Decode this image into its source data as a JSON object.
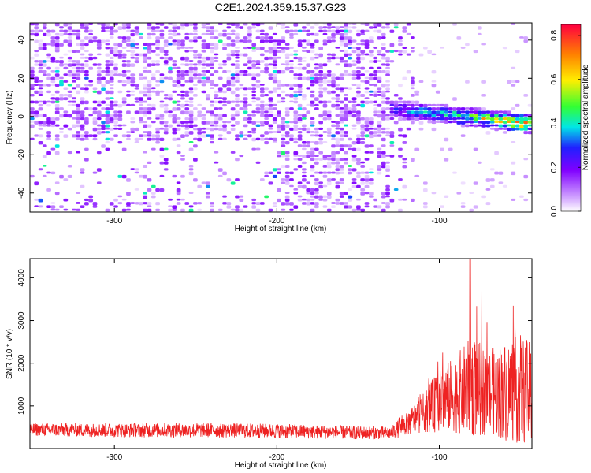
{
  "title": "C2E1.2024.359.15.37.G23",
  "chart_data": [
    {
      "type": "heatmap",
      "name": "spectrogram",
      "xlabel": "Height of straight line (km)",
      "ylabel": "Frequency (Hz)",
      "xlim": [
        -352,
        -43
      ],
      "ylim": [
        -50,
        49
      ],
      "xticks": [
        -300,
        -200,
        -100
      ],
      "yticks": [
        -40,
        -20,
        0,
        20,
        40
      ],
      "colorbar": {
        "label": "Normalized spectral amplitude",
        "range": [
          0,
          0.85
        ],
        "ticks": [
          0.0,
          0.2,
          0.4,
          0.6,
          0.8
        ],
        "colormap": [
          "#ffffff",
          "#d9b3ff",
          "#8000ff",
          "#2020ff",
          "#00e6e6",
          "#33ff33",
          "#ffee00",
          "#ff8000",
          "#ff0040"
        ]
      },
      "features": [
        {
          "label": "broadband noise",
          "x_range": [
            -352,
            -130
          ],
          "freq_range": [
            -50,
            49
          ],
          "amplitude": 0.1
        },
        {
          "label": "carrier trace",
          "x_start": -130,
          "x_end": -43,
          "freq_start": 4,
          "freq_end": -4,
          "amplitude_max": 0.85
        }
      ]
    },
    {
      "type": "line",
      "name": "snr",
      "xlabel": "Height of straight line (km)",
      "ylabel": "SNR (10 * v/v)",
      "xlim": [
        -352,
        -43
      ],
      "ylim": [
        0,
        4450
      ],
      "xticks": [
        -300,
        -200,
        -100
      ],
      "yticks": [
        1000,
        2000,
        3000,
        4000
      ],
      "series_color": "#ee2222",
      "envelope": [
        {
          "x": -352,
          "base": 400,
          "spread": 300
        },
        {
          "x": -300,
          "base": 380,
          "spread": 330
        },
        {
          "x": -250,
          "base": 380,
          "spread": 340
        },
        {
          "x": -200,
          "base": 360,
          "spread": 340
        },
        {
          "x": -160,
          "base": 330,
          "spread": 320
        },
        {
          "x": -130,
          "base": 320,
          "spread": 300
        },
        {
          "x": -120,
          "base": 500,
          "spread": 550
        },
        {
          "x": -110,
          "base": 700,
          "spread": 900
        },
        {
          "x": -100,
          "base": 900,
          "spread": 1500
        },
        {
          "x": -90,
          "base": 1000,
          "spread": 1800
        },
        {
          "x": -80,
          "base": 1100,
          "spread": 2400
        },
        {
          "x": -70,
          "base": 1000,
          "spread": 2000
        },
        {
          "x": -60,
          "base": 1000,
          "spread": 2300
        },
        {
          "x": -50,
          "base": 1000,
          "spread": 2600
        },
        {
          "x": -43,
          "base": 900,
          "spread": 2400
        }
      ],
      "peak": {
        "x": -81,
        "y": 4450
      }
    }
  ]
}
